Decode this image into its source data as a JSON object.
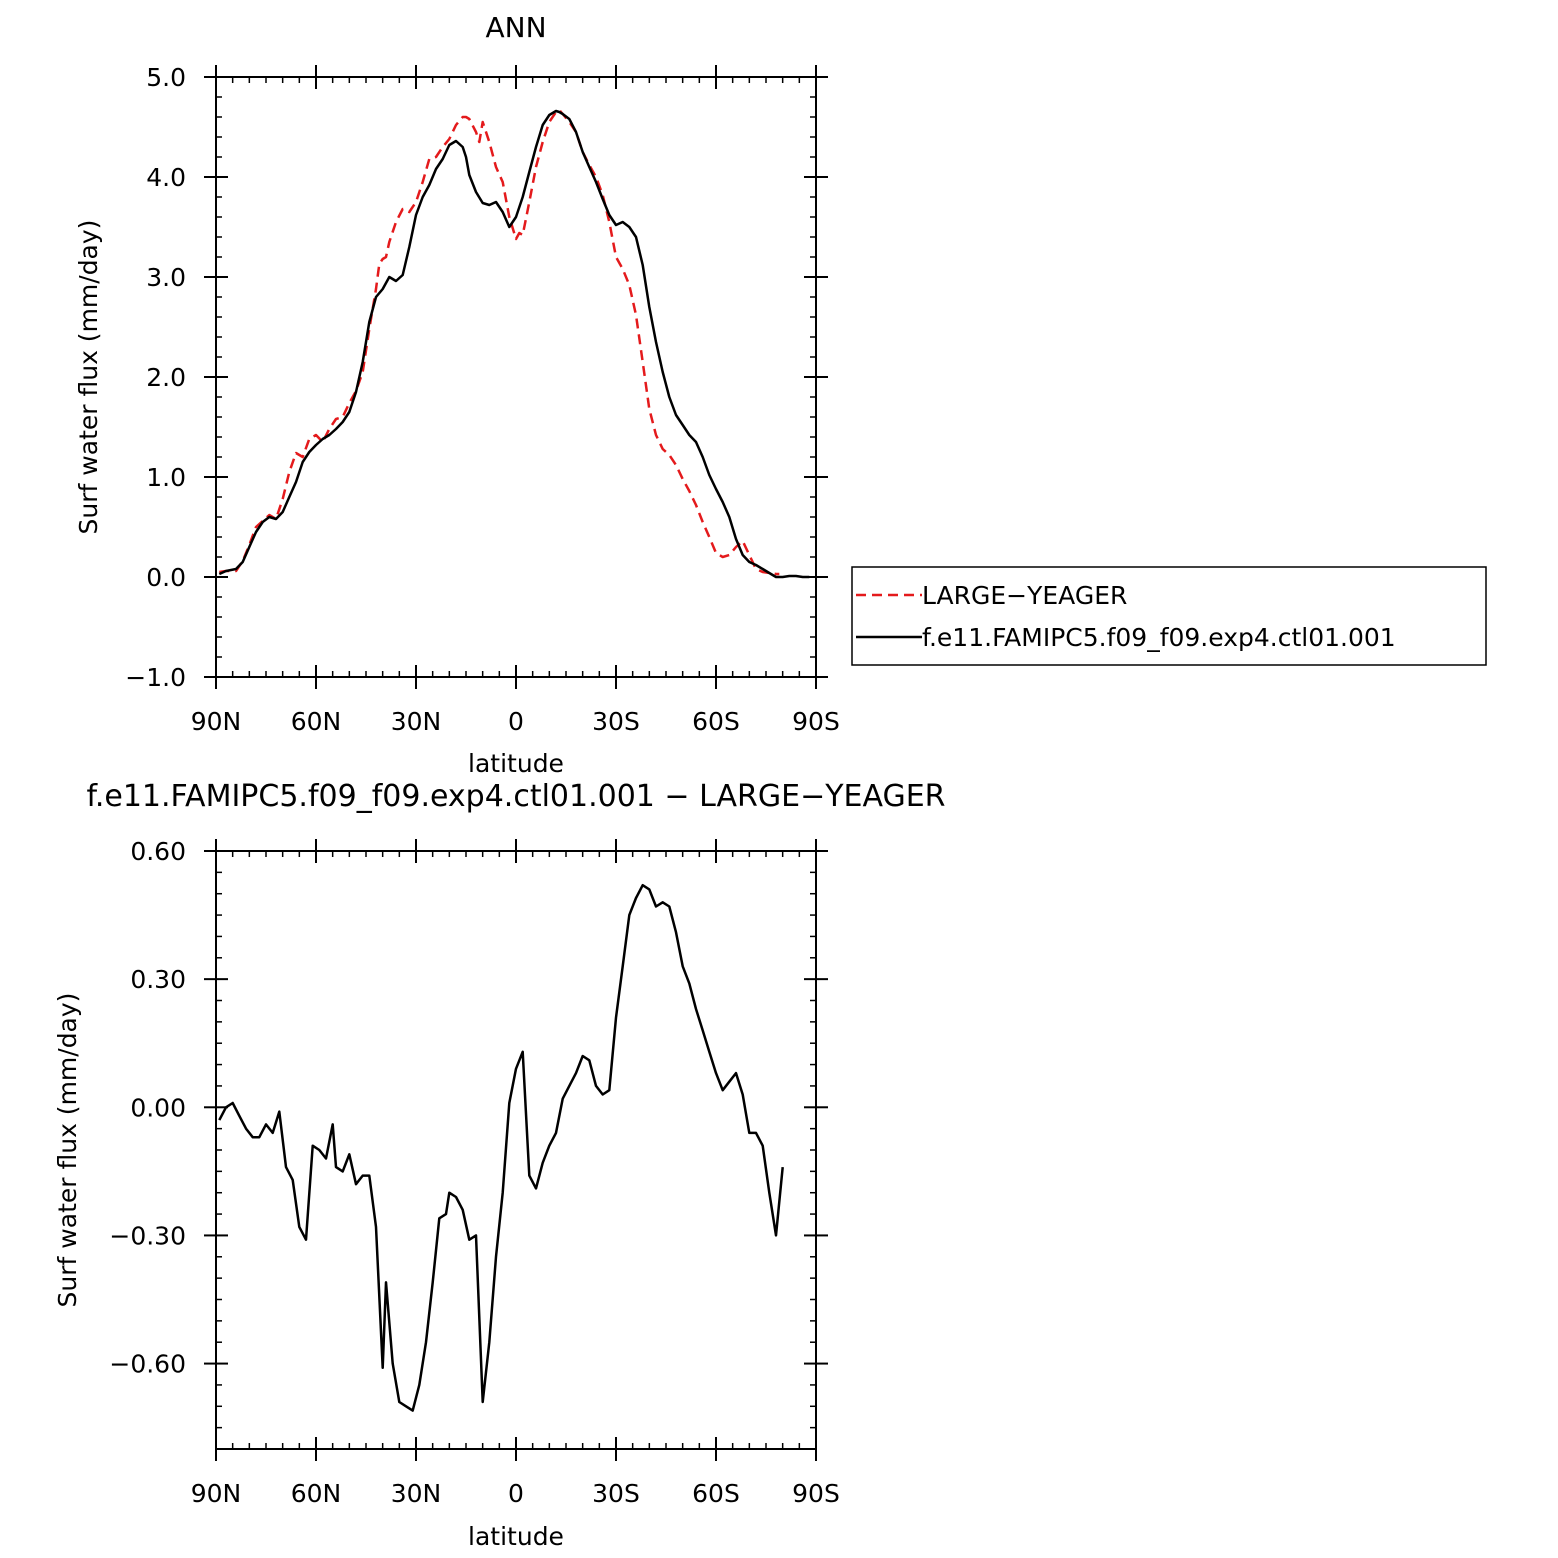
{
  "chart_data": [
    {
      "type": "line",
      "title": "ANN",
      "xlabel": "latitude",
      "ylabel": "Surf water flux (mm/day)",
      "xlim": [
        90,
        -90
      ],
      "ylim": [
        -1.0,
        5.0
      ],
      "yticks": [
        5.0,
        4.0,
        3.0,
        2.0,
        1.0,
        0.0,
        -1.0
      ],
      "ytick_labels": [
        "5.0",
        "4.0",
        "3.0",
        "2.0",
        "1.0",
        "0.0",
        "−1.0"
      ],
      "xticks": [
        90,
        60,
        30,
        0,
        -30,
        -60,
        -90
      ],
      "xtick_labels": [
        "90N",
        "60N",
        "30N",
        "0",
        "30S",
        "60S",
        "90S"
      ],
      "legend_position": "right",
      "series": [
        {
          "name": "LARGE−YEAGER",
          "color": "#e41a1c",
          "style": "dashed",
          "x": [
            89,
            87,
            84,
            82,
            80,
            78,
            76,
            74,
            72,
            70,
            68,
            66,
            64,
            62,
            60,
            58,
            56,
            54,
            52,
            50,
            48,
            46,
            44,
            42,
            41,
            40,
            39,
            38,
            36,
            34,
            32,
            30,
            28,
            26,
            24,
            22,
            20,
            18,
            16,
            15,
            14,
            12,
            11,
            10,
            8,
            6,
            4,
            2,
            0,
            -1,
            -2,
            -4,
            -6,
            -8,
            -10,
            -12,
            -13,
            -14,
            -16,
            -18,
            -20,
            -22,
            -24,
            -26,
            -28,
            -30,
            -32,
            -34,
            -36,
            -38,
            -40,
            -42,
            -44,
            -46,
            -48,
            -50,
            -52,
            -54,
            -56,
            -58,
            -60,
            -62,
            -64,
            -66,
            -68,
            -70,
            -72,
            -74,
            -76,
            -78,
            -79
          ],
          "y": [
            0.05,
            0.06,
            0.06,
            0.16,
            0.32,
            0.5,
            0.56,
            0.62,
            0.58,
            0.78,
            1.05,
            1.24,
            1.2,
            1.38,
            1.42,
            1.35,
            1.48,
            1.58,
            1.6,
            1.74,
            1.86,
            2.05,
            2.48,
            2.88,
            3.13,
            3.18,
            3.2,
            3.35,
            3.55,
            3.68,
            3.65,
            3.75,
            3.95,
            4.18,
            4.2,
            4.3,
            4.38,
            4.52,
            4.6,
            4.6,
            4.58,
            4.45,
            4.35,
            4.55,
            4.35,
            4.1,
            3.95,
            3.6,
            3.38,
            3.44,
            3.42,
            3.75,
            4.1,
            4.35,
            4.55,
            4.65,
            4.67,
            4.63,
            4.55,
            4.45,
            4.25,
            4.12,
            4.0,
            3.82,
            3.55,
            3.2,
            3.08,
            2.92,
            2.62,
            2.15,
            1.68,
            1.42,
            1.28,
            1.22,
            1.12,
            0.98,
            0.86,
            0.72,
            0.55,
            0.4,
            0.24,
            0.2,
            0.22,
            0.3,
            0.36,
            0.22,
            0.08,
            0.05,
            0.04,
            0.03,
            0.03
          ]
        },
        {
          "name": "f.e11.FAMIPC5.f09_f09.exp4.ctl01.001",
          "color": "#000000",
          "style": "solid",
          "x": [
            89,
            87,
            84,
            82,
            80,
            78,
            76,
            74,
            72,
            70,
            68,
            66,
            64,
            62,
            60,
            58,
            56,
            54,
            52,
            50,
            48,
            46,
            44,
            42,
            40,
            38,
            36,
            34,
            32,
            30,
            28,
            26,
            24,
            22,
            20,
            18,
            16,
            15,
            14,
            12,
            10,
            8,
            6,
            4,
            2,
            0,
            -2,
            -4,
            -6,
            -8,
            -10,
            -12,
            -13,
            -14,
            -16,
            -18,
            -20,
            -22,
            -24,
            -26,
            -28,
            -30,
            -32,
            -34,
            -36,
            -38,
            -40,
            -42,
            -44,
            -46,
            -48,
            -50,
            -52,
            -54,
            -56,
            -58,
            -60,
            -62,
            -64,
            -66,
            -68,
            -70,
            -72,
            -74,
            -76,
            -78,
            -80,
            -82,
            -84,
            -86,
            -88
          ],
          "y": [
            0.03,
            0.06,
            0.08,
            0.15,
            0.3,
            0.45,
            0.55,
            0.6,
            0.58,
            0.65,
            0.8,
            0.95,
            1.15,
            1.25,
            1.32,
            1.38,
            1.42,
            1.48,
            1.55,
            1.65,
            1.85,
            2.15,
            2.55,
            2.8,
            2.88,
            3.0,
            2.96,
            3.02,
            3.3,
            3.62,
            3.8,
            3.92,
            4.08,
            4.18,
            4.32,
            4.36,
            4.3,
            4.2,
            4.02,
            3.85,
            3.74,
            3.72,
            3.75,
            3.65,
            3.5,
            3.6,
            3.8,
            4.05,
            4.3,
            4.52,
            4.62,
            4.66,
            4.65,
            4.63,
            4.58,
            4.45,
            4.25,
            4.1,
            3.95,
            3.78,
            3.62,
            3.52,
            3.55,
            3.5,
            3.4,
            3.12,
            2.7,
            2.35,
            2.05,
            1.8,
            1.62,
            1.52,
            1.42,
            1.35,
            1.2,
            1.02,
            0.88,
            0.75,
            0.6,
            0.38,
            0.22,
            0.15,
            0.12,
            0.08,
            0.04,
            0.0,
            0.0,
            0.01,
            0.01,
            0.0,
            0.0
          ]
        }
      ]
    },
    {
      "type": "line",
      "title": "f.e11.FAMIPC5.f09_f09.exp4.ctl01.001 − LARGE−YEAGER",
      "xlabel": "latitude",
      "ylabel": "Surf water flux (mm/day)",
      "xlim": [
        90,
        -90
      ],
      "ylim": [
        -0.8,
        0.6
      ],
      "yticks": [
        0.6,
        0.3,
        0.0,
        -0.3,
        -0.6
      ],
      "ytick_labels": [
        "0.60",
        "0.30",
        "0.00",
        "−0.30",
        "−0.60"
      ],
      "xticks": [
        90,
        60,
        30,
        0,
        -30,
        -60,
        -90
      ],
      "xtick_labels": [
        "90N",
        "60N",
        "30N",
        "0",
        "30S",
        "60S",
        "90S"
      ],
      "series": [
        {
          "color": "#000000",
          "style": "solid",
          "x": [
            89,
            87,
            85,
            83,
            81,
            79,
            77,
            75,
            73,
            71,
            69,
            67,
            65,
            63,
            61,
            59,
            57,
            55,
            54,
            52,
            50,
            48,
            46,
            44,
            42,
            40,
            39,
            37,
            35,
            33,
            31,
            29,
            27,
            25,
            23,
            21,
            20,
            18,
            16,
            14,
            12,
            10,
            8,
            6,
            4,
            2,
            0,
            -2,
            -4,
            -6,
            -8,
            -10,
            -12,
            -14,
            -16,
            -18,
            -20,
            -22,
            -24,
            -26,
            -28,
            -30,
            -32,
            -34,
            -36,
            -38,
            -40,
            -42,
            -44,
            -46,
            -48,
            -50,
            -52,
            -54,
            -56,
            -58,
            -60,
            -62,
            -64,
            -66,
            -68,
            -70,
            -72,
            -74,
            -76,
            -78,
            -80
          ],
          "y": [
            -0.03,
            0.0,
            0.01,
            -0.02,
            -0.05,
            -0.07,
            -0.07,
            -0.04,
            -0.06,
            -0.01,
            -0.14,
            -0.17,
            -0.28,
            -0.31,
            -0.09,
            -0.1,
            -0.12,
            -0.04,
            -0.14,
            -0.15,
            -0.11,
            -0.18,
            -0.16,
            -0.16,
            -0.28,
            -0.61,
            -0.41,
            -0.6,
            -0.69,
            -0.7,
            -0.71,
            -0.65,
            -0.55,
            -0.41,
            -0.26,
            -0.25,
            -0.2,
            -0.21,
            -0.24,
            -0.31,
            -0.3,
            -0.69,
            -0.55,
            -0.35,
            -0.2,
            0.01,
            0.09,
            0.13,
            -0.16,
            -0.19,
            -0.13,
            -0.09,
            -0.06,
            0.02,
            0.05,
            0.08,
            0.12,
            0.11,
            0.05,
            0.03,
            0.04,
            0.21,
            0.33,
            0.45,
            0.49,
            0.52,
            0.51,
            0.47,
            0.48,
            0.47,
            0.41,
            0.33,
            0.29,
            0.23,
            0.18,
            0.13,
            0.08,
            0.04,
            0.06,
            0.08,
            0.03,
            -0.06,
            -0.06,
            -0.09,
            -0.2,
            -0.3,
            -0.14
          ]
        }
      ]
    }
  ]
}
